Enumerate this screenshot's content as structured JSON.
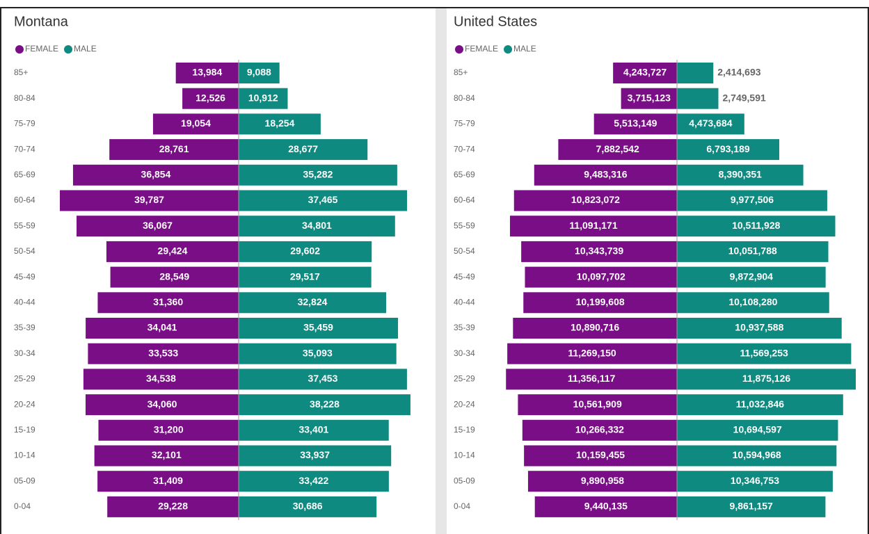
{
  "chart_data": [
    {
      "type": "pyramid",
      "title": "Montana",
      "categories": [
        "85+",
        "80-84",
        "75-79",
        "70-74",
        "65-69",
        "60-64",
        "55-59",
        "50-54",
        "45-49",
        "40-44",
        "35-39",
        "30-34",
        "25-29",
        "20-24",
        "15-19",
        "10-14",
        "05-09",
        "0-04"
      ],
      "series": [
        {
          "name": "FEMALE",
          "color": "#7a0e86",
          "values": [
            13984,
            12526,
            19054,
            28761,
            36854,
            39787,
            36067,
            29424,
            28549,
            31360,
            34041,
            33533,
            34538,
            34060,
            31200,
            32101,
            31409,
            29228
          ],
          "value_labels": [
            "13,984",
            "12,526",
            "19,054",
            "28,761",
            "36,854",
            "39,787",
            "36,067",
            "29,424",
            "28,549",
            "31,360",
            "34,041",
            "33,533",
            "34,538",
            "34,060",
            "31,200",
            "32,101",
            "31,409",
            "29,228"
          ]
        },
        {
          "name": "MALE",
          "color": "#0f8a80",
          "values": [
            9088,
            10912,
            18254,
            28677,
            35282,
            37465,
            34801,
            29602,
            29517,
            32824,
            35459,
            35093,
            37453,
            38228,
            33401,
            33937,
            33422,
            30686
          ],
          "value_labels": [
            "9,088",
            "10,912",
            "18,254",
            "28,677",
            "35,282",
            "37,465",
            "34,801",
            "29,602",
            "29,517",
            "32,824",
            "35,459",
            "35,093",
            "37,453",
            "38,228",
            "33,401",
            "33,937",
            "33,422",
            "30,686"
          ]
        }
      ]
    },
    {
      "type": "pyramid",
      "title": "United States",
      "categories": [
        "85+",
        "80-84",
        "75-79",
        "70-74",
        "65-69",
        "60-64",
        "55-59",
        "50-54",
        "45-49",
        "40-44",
        "35-39",
        "30-34",
        "25-29",
        "20-24",
        "15-19",
        "10-14",
        "05-09",
        "0-04"
      ],
      "series": [
        {
          "name": "FEMALE",
          "color": "#7a0e86",
          "values": [
            4243727,
            3715123,
            5513149,
            7882542,
            9483316,
            10823072,
            11091171,
            10343739,
            10097702,
            10199608,
            10890716,
            11269150,
            11356117,
            10561909,
            10266332,
            10159455,
            9890958,
            9440135
          ],
          "value_labels": [
            "4,243,727",
            "3,715,123",
            "5,513,149",
            "7,882,542",
            "9,483,316",
            "10,823,072",
            "11,091,171",
            "10,343,739",
            "10,097,702",
            "10,199,608",
            "10,890,716",
            "11,269,150",
            "11,356,117",
            "10,561,909",
            "10,266,332",
            "10,159,455",
            "9,890,958",
            "9,440,135"
          ]
        },
        {
          "name": "MALE",
          "color": "#0f8a80",
          "values": [
            2414693,
            2749591,
            4473684,
            6793189,
            8390351,
            9977506,
            10511928,
            10051788,
            9872904,
            10108280,
            10937588,
            11569253,
            11875126,
            11032846,
            10694597,
            10594968,
            10346753,
            9861157
          ],
          "value_labels": [
            "2,414,693",
            "2,749,591",
            "4,473,684",
            "6,793,189",
            "8,390,351",
            "9,977,506",
            "10,511,928",
            "10,051,788",
            "9,872,904",
            "10,108,280",
            "10,937,588",
            "11,569,253",
            "11,875,126",
            "11,032,846",
            "10,694,597",
            "10,594,968",
            "10,346,753",
            "9,861,157"
          ]
        }
      ]
    }
  ]
}
